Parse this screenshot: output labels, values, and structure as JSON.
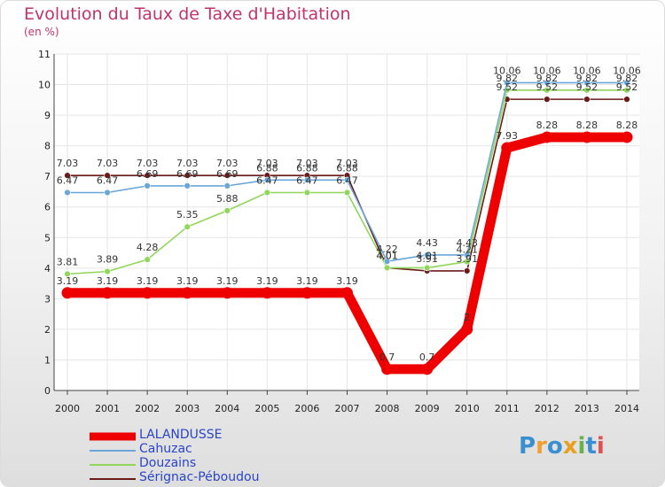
{
  "header": {
    "title": "Evolution du Taux de Taxe d'Habitation",
    "unit": "(en %)"
  },
  "chart_data": {
    "type": "line",
    "title": "Evolution du Taux de Taxe d'Habitation",
    "ylabel": "(en %)",
    "xlabel": "",
    "x": [
      "2000",
      "2001",
      "2002",
      "2003",
      "2004",
      "2005",
      "2006",
      "2007",
      "2008",
      "2009",
      "2010",
      "2011",
      "2012",
      "2013",
      "2014"
    ],
    "ylim": [
      0,
      11
    ],
    "yticks": [
      "0",
      "1",
      "2",
      "3",
      "4",
      "5",
      "6",
      "7",
      "8",
      "9",
      "10",
      "11"
    ],
    "series": [
      {
        "name": "LALANDUSSE",
        "color": "#ee0000",
        "values": [
          3.19,
          3.19,
          3.19,
          3.19,
          3.19,
          3.19,
          3.19,
          3.19,
          0.7,
          0.7,
          2,
          7.93,
          8.28,
          8.28,
          8.28
        ],
        "labels": [
          "3.19",
          "3.19",
          "3.19",
          "3.19",
          "3.19",
          "3.19",
          "3.19",
          "3.19",
          "0.7",
          "0.7",
          "2",
          "7.93",
          "8.28",
          "8.28",
          "8.28"
        ]
      },
      {
        "name": "Cahuzac",
        "color": "#6aa6d8",
        "values": [
          6.47,
          6.47,
          6.69,
          6.69,
          6.69,
          6.88,
          6.88,
          6.88,
          4.22,
          4.43,
          4.43,
          10.06,
          10.06,
          10.06,
          10.06
        ],
        "labels": [
          "6.47",
          "6.47",
          "6.69",
          "6.69",
          "6.69",
          "6.88",
          "6.88",
          "6.88",
          "4.22",
          "4.43",
          "4.43",
          "10.06",
          "10.06",
          "10.06",
          "10.06"
        ]
      },
      {
        "name": "Douzains",
        "color": "#8fd65a",
        "values": [
          3.81,
          3.89,
          4.28,
          5.35,
          5.88,
          6.47,
          6.47,
          6.47,
          4.01,
          4.01,
          4.21,
          9.82,
          9.82,
          9.82,
          9.82
        ],
        "labels": [
          "3.81",
          "3.89",
          "4.28",
          "5.35",
          "5.88",
          "6.47",
          "6.47",
          "6.47",
          "4.01",
          "4.01",
          "4.21",
          "9.82",
          "9.82",
          "9.82",
          "9.82"
        ]
      },
      {
        "name": "Sérignac-Péboudou",
        "color": "#6b1a1a",
        "values": [
          7.03,
          7.03,
          7.03,
          7.03,
          7.03,
          7.03,
          7.03,
          7.03,
          4.01,
          3.91,
          3.91,
          9.52,
          9.52,
          9.52,
          9.52
        ],
        "labels": [
          "7.03",
          "7.03",
          "7.03",
          "7.03",
          "7.03",
          "7.03",
          "7.03",
          "7.03",
          "4.01",
          "3.91",
          "3.91",
          "9.52",
          "9.52",
          "9.52",
          "9.52"
        ]
      }
    ]
  },
  "legend": {
    "items": [
      {
        "label": "LALANDUSSE",
        "color": "#ee0000"
      },
      {
        "label": "Cahuzac",
        "color": "#6aa6d8"
      },
      {
        "label": "Douzains",
        "color": "#8fd65a"
      },
      {
        "label": "Sérignac-Péboudou",
        "color": "#6b1a1a"
      }
    ]
  },
  "logo": {
    "parts": [
      "P",
      "r",
      "o",
      "x",
      "i",
      "t",
      "i"
    ]
  }
}
